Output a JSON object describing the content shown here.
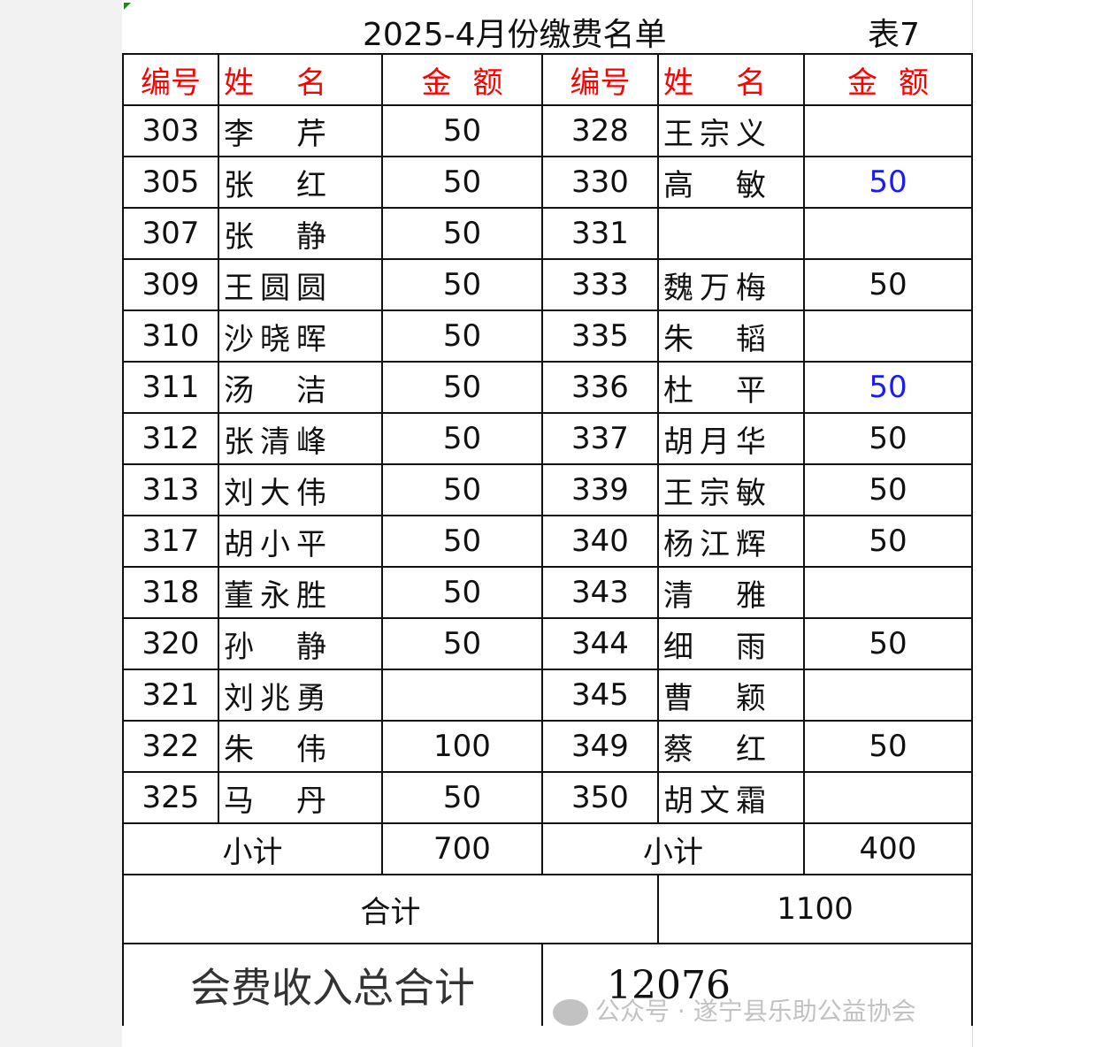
{
  "title": "2025-4月份缴费名单",
  "table_no": "表7",
  "headers": [
    "编号",
    "姓 名",
    "金 额",
    "编号",
    "姓 名",
    "金 额"
  ],
  "rows": [
    {
      "l_no": "303",
      "l_name": "李芹",
      "l_amt": "50",
      "r_no": "328",
      "r_name": "王宗义",
      "r_amt": ""
    },
    {
      "l_no": "305",
      "l_name": "张红",
      "l_amt": "50",
      "r_no": "330",
      "r_name": "高敏",
      "r_amt": "50",
      "r_blue": true
    },
    {
      "l_no": "307",
      "l_name": "张静",
      "l_amt": "50",
      "r_no": "331",
      "r_name": "",
      "r_amt": ""
    },
    {
      "l_no": "309",
      "l_name": "王圆圆",
      "l_amt": "50",
      "r_no": "333",
      "r_name": "魏万梅",
      "r_amt": "50"
    },
    {
      "l_no": "310",
      "l_name": "沙晓晖",
      "l_amt": "50",
      "r_no": "335",
      "r_name": "朱韬",
      "r_amt": ""
    },
    {
      "l_no": "311",
      "l_name": "汤洁",
      "l_amt": "50",
      "r_no": "336",
      "r_name": "杜平",
      "r_amt": "50",
      "r_blue": true
    },
    {
      "l_no": "312",
      "l_name": "张清峰",
      "l_amt": "50",
      "r_no": "337",
      "r_name": "胡月华",
      "r_amt": "50"
    },
    {
      "l_no": "313",
      "l_name": "刘大伟",
      "l_amt": "50",
      "r_no": "339",
      "r_name": "王宗敏",
      "r_amt": "50"
    },
    {
      "l_no": "317",
      "l_name": "胡小平",
      "l_amt": "50",
      "r_no": "340",
      "r_name": "杨江辉",
      "r_amt": "50"
    },
    {
      "l_no": "318",
      "l_name": "董永胜",
      "l_amt": "50",
      "r_no": "343",
      "r_name": "清雅",
      "r_amt": ""
    },
    {
      "l_no": "320",
      "l_name": "孙静",
      "l_amt": "50",
      "r_no": "344",
      "r_name": "细雨",
      "r_amt": "50"
    },
    {
      "l_no": "321",
      "l_name": "刘兆勇",
      "l_amt": "",
      "r_no": "345",
      "r_name": "曹颖",
      "r_amt": ""
    },
    {
      "l_no": "322",
      "l_name": "朱伟",
      "l_amt": "100",
      "r_no": "349",
      "r_name": "蔡红",
      "r_amt": "50"
    },
    {
      "l_no": "325",
      "l_name": "马丹",
      "l_amt": "50",
      "r_no": "350",
      "r_name": "胡文霜",
      "r_amt": ""
    }
  ],
  "subtotal_label": "小计",
  "left_subtotal": "700",
  "right_subtotal": "400",
  "total_label": "合计",
  "total": "1100",
  "grand_label": "会费收入总合计",
  "grand_total": "12076",
  "watermark": "公众号 · 遂宁县乐助公益协会",
  "colors": {
    "header": "#ff0000",
    "highlight": "#1a1aff",
    "border": "#111111"
  }
}
